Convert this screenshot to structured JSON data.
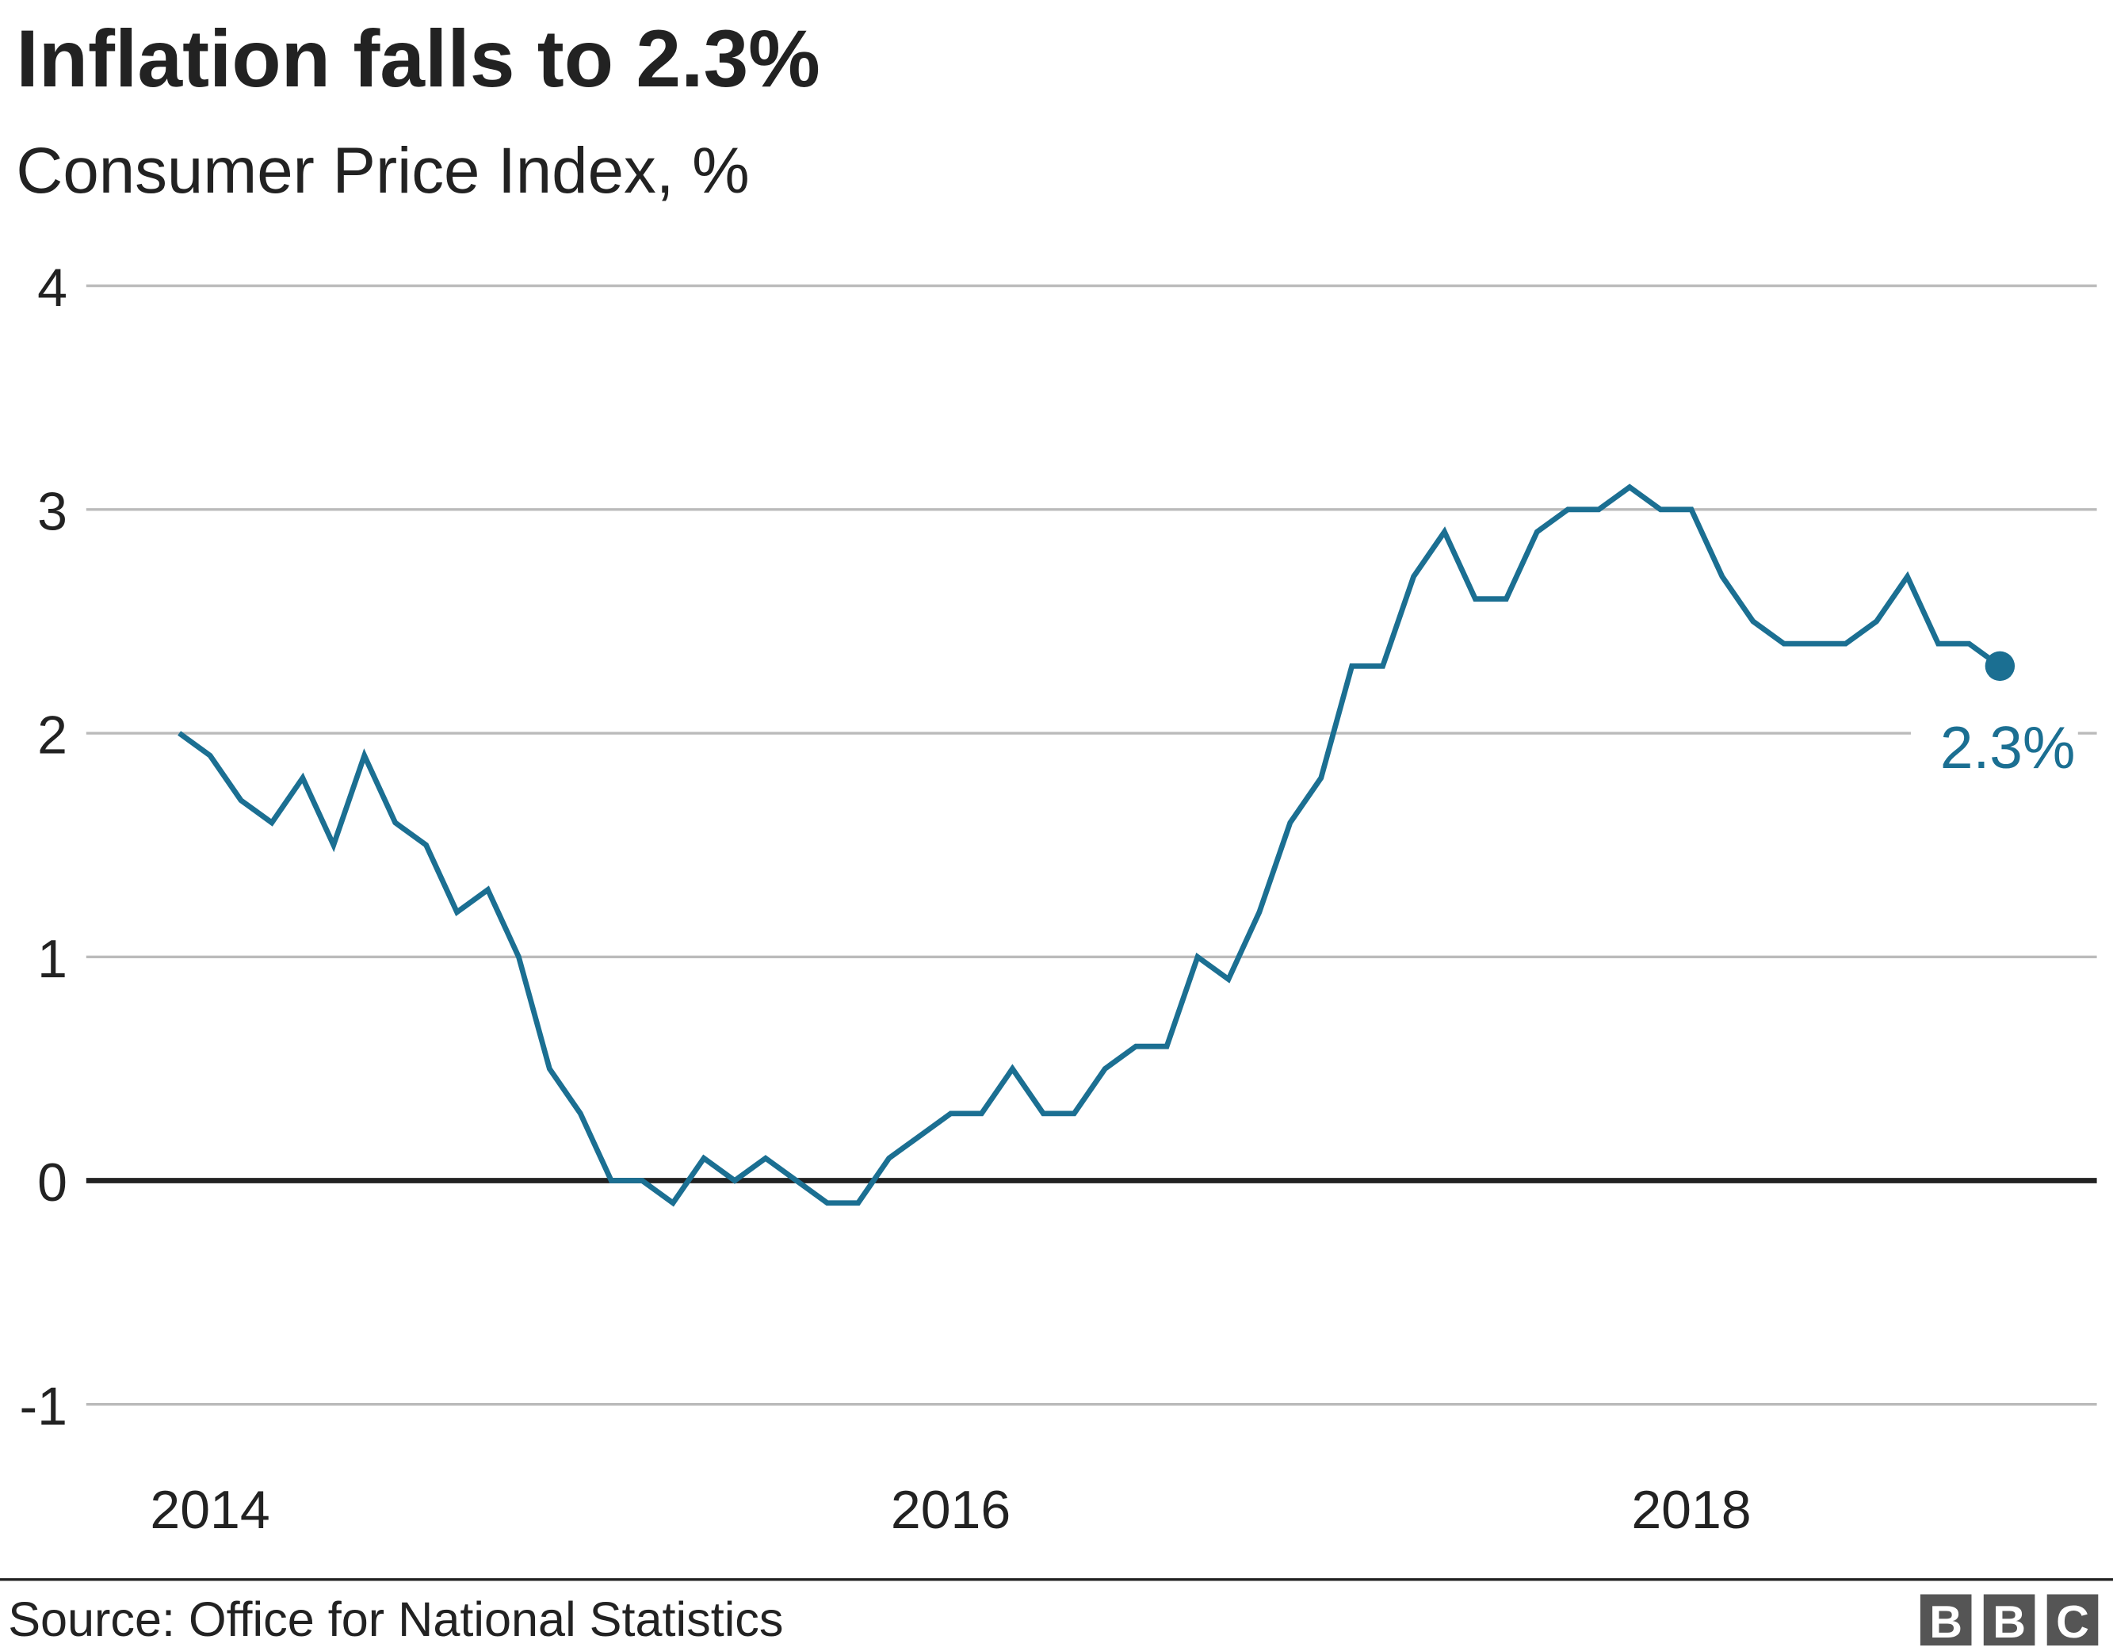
{
  "chart_data": {
    "type": "line",
    "title": "Inflation falls to 2.3%",
    "subtitle": "Consumer Price Index, %",
    "xlabel": "",
    "ylabel": "",
    "ylim": [
      -1,
      4
    ],
    "yticks": [
      4,
      3,
      2,
      1,
      0,
      -1
    ],
    "ytick_labels": [
      "4",
      "3",
      "2",
      "1",
      "0",
      "-1"
    ],
    "xtick_labels": [
      "2014",
      "2016",
      "2018"
    ],
    "xtick_months_index": [
      1,
      25,
      49
    ],
    "x_start": "Dec 2013",
    "x_end": "Nov 2018",
    "grid": true,
    "series": [
      {
        "name": "CPI",
        "color": "#1b6f92",
        "values": [
          2.0,
          1.9,
          1.7,
          1.6,
          1.8,
          1.5,
          1.9,
          1.6,
          1.5,
          1.2,
          1.3,
          1.0,
          0.5,
          0.3,
          0.0,
          0.0,
          -0.1,
          0.1,
          0.0,
          0.1,
          0.0,
          -0.1,
          -0.1,
          0.1,
          0.2,
          0.3,
          0.3,
          0.5,
          0.3,
          0.3,
          0.5,
          0.6,
          0.6,
          1.0,
          0.9,
          1.2,
          1.6,
          1.8,
          2.3,
          2.3,
          2.7,
          2.9,
          2.6,
          2.6,
          2.9,
          3.0,
          3.0,
          3.1,
          3.0,
          3.0,
          2.7,
          2.5,
          2.4,
          2.4,
          2.4,
          2.5,
          2.7,
          2.4,
          2.4,
          2.3
        ]
      }
    ],
    "annotation": "2.3%",
    "source": "Source: Office for National Statistics",
    "logo": "BBC"
  }
}
